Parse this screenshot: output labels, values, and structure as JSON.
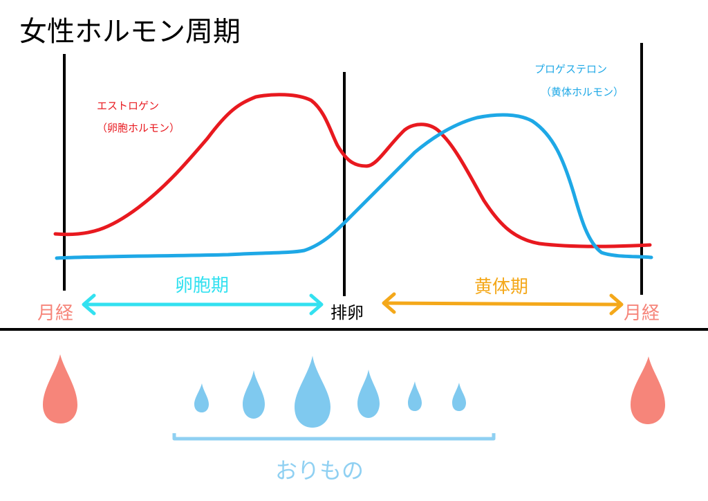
{
  "title": "女性ホルモン周期",
  "estrogen": {
    "name": "エストロゲン",
    "subtitle": "（卵胞ホルモン）"
  },
  "progesterone": {
    "name": "プロゲステロン",
    "subtitle": "（黄体ホルモン）"
  },
  "phases": {
    "follicular": "卵胞期",
    "luteal": "黄体期"
  },
  "events": {
    "menstruation": "月経",
    "ovulation": "排卵"
  },
  "discharge_label": "おりもの",
  "colors": {
    "estrogen": "#e8191f",
    "progesterone": "#1ea8e6",
    "follicular_arrow": "#33e1f0",
    "luteal_arrow": "#f4a81a",
    "menstruation": "#f6857a",
    "discharge": "#7fc9ef",
    "bracket": "#8fd0f2",
    "lines": "#000000"
  }
}
